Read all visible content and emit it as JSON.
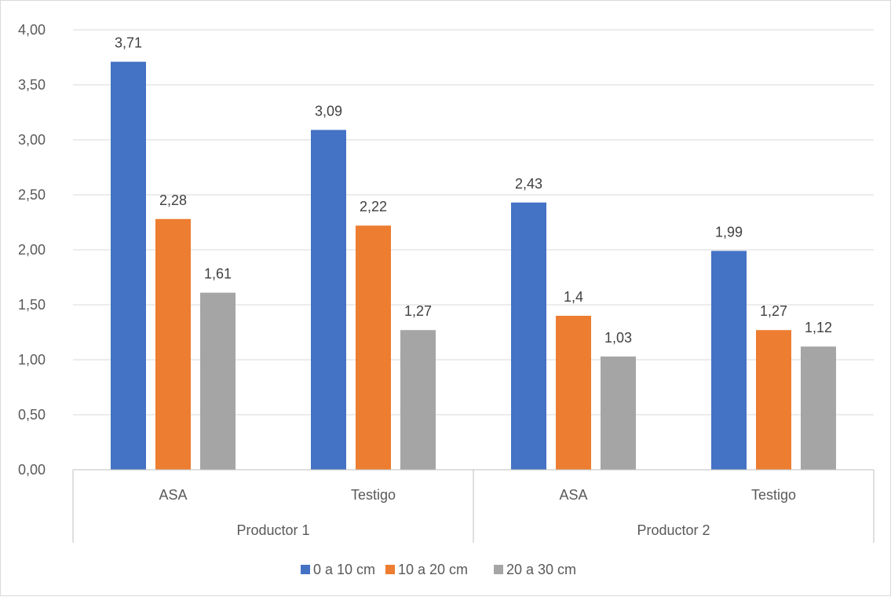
{
  "chart_data": {
    "type": "bar",
    "title": "",
    "xlabel": "",
    "ylabel": "",
    "ylim": [
      0,
      4
    ],
    "yticks": [
      "0,00",
      "0,50",
      "1,00",
      "1,50",
      "2,00",
      "2,50",
      "3,00",
      "3,50",
      "4,00"
    ],
    "grid": true,
    "legend_position": "bottom",
    "groups": [
      {
        "name": "Productor 1",
        "categories": [
          "ASA",
          "Testigo"
        ]
      },
      {
        "name": "Productor 2",
        "categories": [
          "ASA",
          "Testigo"
        ]
      }
    ],
    "series": [
      {
        "name": "0 a 10 cm",
        "color": "#4472C4",
        "values": [
          3.71,
          3.09,
          2.43,
          1.99
        ],
        "labels": [
          "3,71",
          "3,09",
          "2,43",
          "1,99"
        ]
      },
      {
        "name": "10 a 20 cm",
        "color": "#ED7D31",
        "values": [
          2.28,
          2.22,
          1.4,
          1.27
        ],
        "labels": [
          "2,28",
          "2,22",
          "1,4",
          "1,27"
        ]
      },
      {
        "name": "20 a 30 cm",
        "color": "#A5A5A5",
        "values": [
          1.61,
          1.27,
          1.03,
          1.12
        ],
        "labels": [
          "1,61",
          "1,27",
          "1,03",
          "1,12"
        ]
      }
    ]
  }
}
